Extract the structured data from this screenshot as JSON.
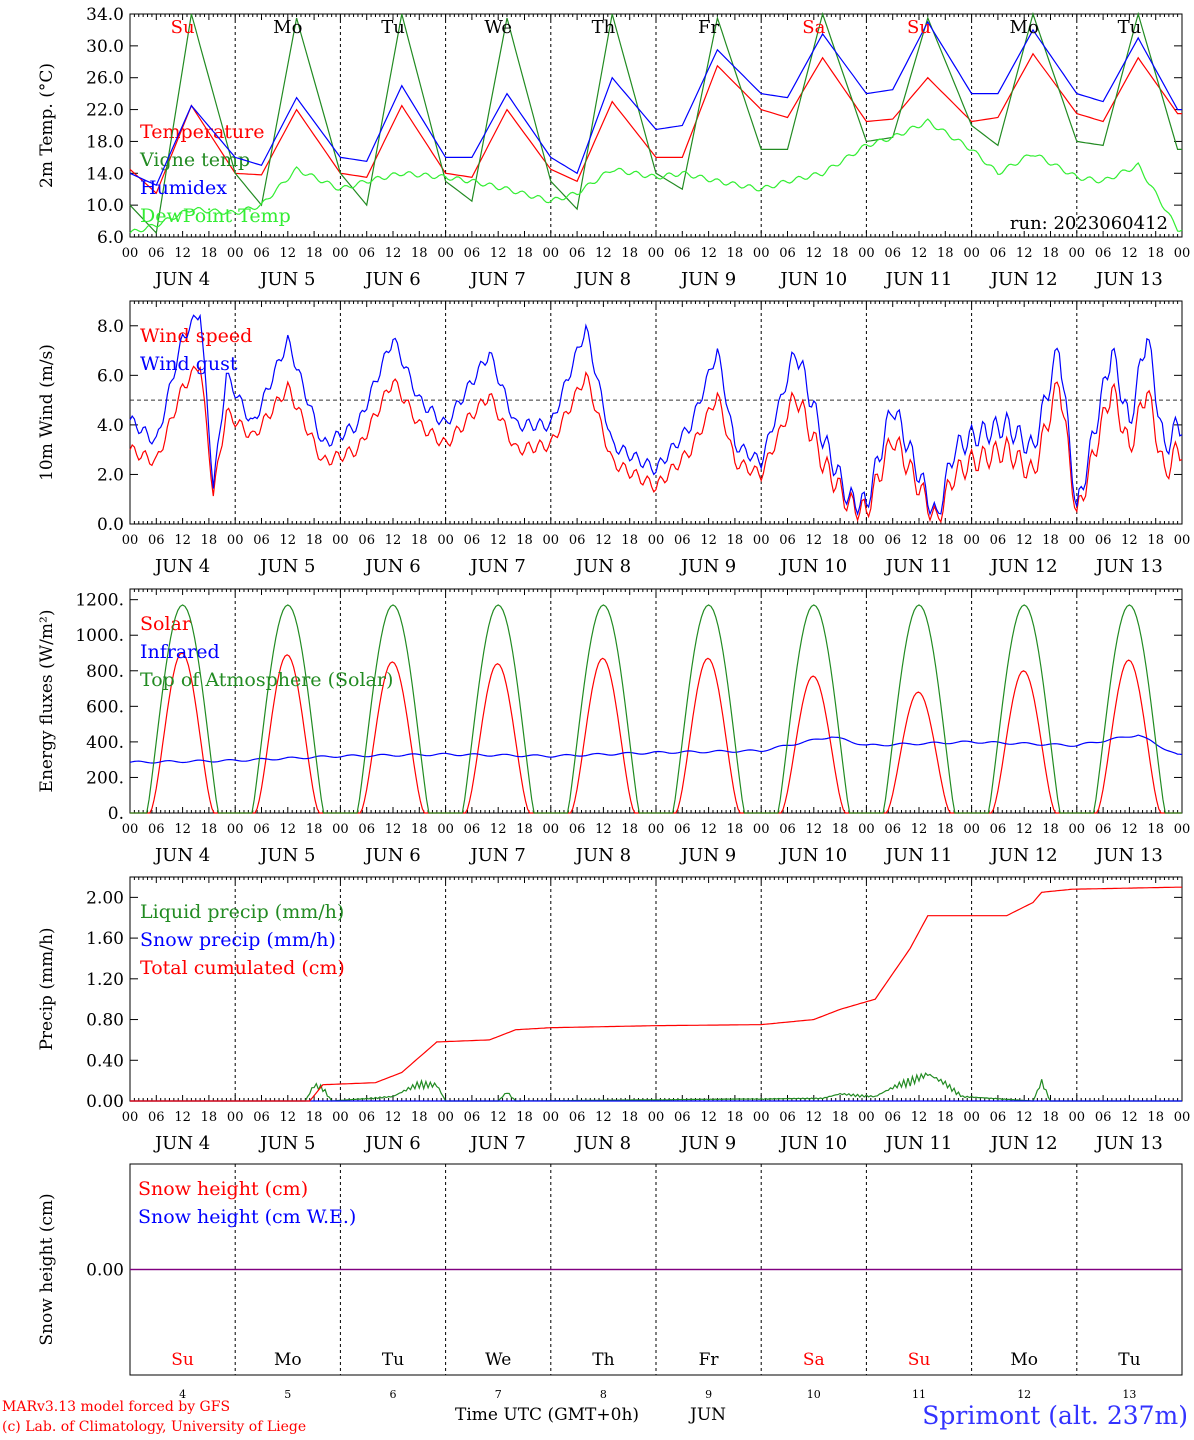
{
  "colors": {
    "red": "#ff0000",
    "dkgreen": "#228b22",
    "blue": "#0000ff",
    "ltgreen": "#33ee33",
    "purple": "#800080",
    "axis": "#000000"
  },
  "x_hours": [
    "00",
    "06",
    "12",
    "18"
  ],
  "day_blocks": [
    {
      "month": "JUN",
      "day": "4",
      "weekday": "Su",
      "weekday_color": "red"
    },
    {
      "month": "JUN",
      "day": "5",
      "weekday": "Mo",
      "weekday_color": "black"
    },
    {
      "month": "JUN",
      "day": "6",
      "weekday": "Tu",
      "weekday_color": "black"
    },
    {
      "month": "JUN",
      "day": "7",
      "weekday": "We",
      "weekday_color": "black"
    },
    {
      "month": "JUN",
      "day": "8",
      "weekday": "Th",
      "weekday_color": "black"
    },
    {
      "month": "JUN",
      "day": "9",
      "weekday": "Fr",
      "weekday_color": "black"
    },
    {
      "month": "JUN",
      "day": "10",
      "weekday": "Sa",
      "weekday_color": "red"
    },
    {
      "month": "JUN",
      "day": "11",
      "weekday": "Su",
      "weekday_color": "red"
    },
    {
      "month": "JUN",
      "day": "12",
      "weekday": "Mo",
      "weekday_color": "black"
    },
    {
      "month": "JUN",
      "day": "13",
      "weekday": "Tu",
      "weekday_color": "black"
    }
  ],
  "footer": {
    "model_line": "MARv3.13 model forced by GFS",
    "credit_line": "(c) Lab. of Climatology, University of Liege",
    "xaxis_title": "Time UTC (GMT+0h)",
    "xaxis_month": "JUN",
    "station": "Sprimont (alt. 237m)"
  },
  "chart_data": [
    {
      "type": "line",
      "ylabel": "2m Temp. (°C)",
      "ylim": [
        6.0,
        34.0
      ],
      "yticks": [
        "6.0",
        "10.0",
        "14.0",
        "18.0",
        "22.0",
        "26.0",
        "30.0",
        "34.0"
      ],
      "run_label": "run: 2023060412",
      "weekday_labels_on_top": true,
      "dashed_hline": null,
      "series": [
        {
          "name": "Temperature",
          "color": "red",
          "x_hours": [
            0,
            6,
            14,
            24,
            30,
            38,
            48,
            54,
            62,
            72,
            78,
            86,
            96,
            102,
            110,
            120,
            126,
            134,
            144,
            150,
            158,
            168,
            174,
            182,
            192,
            198,
            206,
            216,
            222,
            230,
            239
          ],
          "values": [
            14.5,
            11.5,
            22.5,
            14,
            13.8,
            22,
            14,
            13.5,
            22.5,
            14,
            13.5,
            22,
            14.5,
            13,
            23,
            16,
            16,
            27.5,
            22,
            21,
            28.5,
            20.5,
            20.8,
            26,
            20.5,
            21,
            29,
            21.5,
            20.5,
            28.5,
            21.5
          ]
        },
        {
          "name": "Vigne temp",
          "color": "dkgreen",
          "x_hours": [
            0,
            6,
            14,
            24,
            30,
            38,
            48,
            54,
            62,
            72,
            78,
            86,
            96,
            102,
            110,
            120,
            126,
            134,
            144,
            150,
            158,
            168,
            174,
            182,
            192,
            198,
            206,
            216,
            222,
            230,
            239
          ],
          "values": [
            10,
            6.5,
            34,
            14,
            10,
            33.5,
            14,
            10,
            34,
            13,
            10.5,
            33.5,
            13,
            9.5,
            34,
            14,
            12,
            33.5,
            17,
            17,
            34,
            18,
            18.5,
            33.5,
            20,
            17.5,
            34,
            18,
            17.5,
            34,
            17
          ]
        },
        {
          "name": "Humidex",
          "color": "blue",
          "x_hours": [
            0,
            6,
            14,
            24,
            30,
            38,
            48,
            54,
            62,
            72,
            78,
            86,
            96,
            102,
            110,
            120,
            126,
            134,
            144,
            150,
            158,
            168,
            174,
            182,
            192,
            198,
            206,
            216,
            222,
            230,
            239
          ],
          "values": [
            14,
            12.5,
            22.5,
            16,
            15,
            23.5,
            16,
            15.5,
            25,
            16,
            16,
            24,
            16,
            14,
            26,
            19.5,
            20,
            29.5,
            24,
            23.5,
            31.5,
            24,
            24.5,
            33,
            24,
            24,
            32,
            24,
            23,
            31,
            22
          ]
        },
        {
          "name": "DewPoint Temp",
          "color": "ltgreen",
          "x_hours": [
            0,
            6,
            14,
            24,
            30,
            38,
            48,
            54,
            62,
            72,
            78,
            86,
            96,
            102,
            110,
            120,
            126,
            134,
            144,
            150,
            158,
            168,
            174,
            182,
            192,
            198,
            206,
            216,
            222,
            230,
            239
          ],
          "values": [
            6.5,
            7.5,
            9.5,
            9,
            10,
            14.5,
            12,
            13,
            14,
            13.5,
            13,
            12,
            10.5,
            11.5,
            14.5,
            13.5,
            14,
            13,
            12,
            13,
            14,
            17.5,
            18.5,
            20.5,
            17,
            14,
            16.5,
            13.5,
            13,
            15,
            7
          ]
        }
      ]
    },
    {
      "type": "line",
      "ylabel": "10m Wind (m/s)",
      "ylim": [
        0.0,
        9.0
      ],
      "yticks": [
        "0.0",
        "2.0",
        "4.0",
        "6.0",
        "8.0"
      ],
      "dashed_hline": 5.0,
      "series": [
        {
          "name": "Wind speed",
          "color": "red",
          "x_hours": [
            0,
            6,
            12,
            16,
            19,
            22,
            28,
            36,
            44,
            52,
            60,
            66,
            72,
            82,
            88,
            96,
            104,
            110,
            120,
            128,
            134,
            138,
            144,
            152,
            158,
            164,
            168,
            174,
            180,
            184,
            188,
            192,
            200,
            206,
            212,
            216,
            224,
            228,
            232,
            236,
            239
          ],
          "values": [
            3,
            2.5,
            5.5,
            6.5,
            1.2,
            4.5,
            3.5,
            5.5,
            2.5,
            3,
            5.8,
            4,
            3.2,
            5.2,
            3,
            3.2,
            6,
            2.5,
            1.5,
            3,
            5.2,
            2.5,
            2,
            5.2,
            2.5,
            0.8,
            0.5,
            3.5,
            1.5,
            0.1,
            2,
            2.5,
            3,
            2,
            5.8,
            0.3,
            5.5,
            3,
            5.5,
            2,
            3
          ]
        },
        {
          "name": "Wind gust",
          "color": "blue",
          "x_hours": [
            0,
            6,
            12,
            16,
            19,
            22,
            28,
            36,
            44,
            52,
            60,
            66,
            72,
            82,
            88,
            96,
            104,
            110,
            120,
            128,
            134,
            138,
            144,
            152,
            158,
            164,
            168,
            174,
            180,
            184,
            188,
            192,
            200,
            206,
            212,
            216,
            224,
            228,
            232,
            236,
            239
          ],
          "values": [
            4.2,
            3.3,
            7.5,
            8.6,
            1.5,
            6,
            4,
            7.4,
            3.2,
            4,
            7.5,
            5,
            4,
            6.9,
            4,
            4,
            7.9,
            3.2,
            2.2,
            4,
            7,
            3.2,
            2.5,
            7,
            3.5,
            1,
            0.8,
            4.8,
            2,
            0.2,
            3,
            3.5,
            4,
            3,
            7.2,
            0.5,
            7,
            4,
            7.7,
            3,
            4
          ]
        }
      ]
    },
    {
      "type": "line",
      "ylabel": "Energy fluxes (W/m²)",
      "ylim": [
        0,
        1260
      ],
      "yticks": [
        "0.",
        "200.",
        "400.",
        "600.",
        "800.",
        "1000.",
        "1200."
      ],
      "dashed_hline": null,
      "series": [
        {
          "name": "Solar",
          "color": "red",
          "day_peaks": [
            900,
            890,
            850,
            840,
            870,
            870,
            770,
            680,
            800,
            860
          ]
        },
        {
          "name": "Infrared",
          "color": "blue",
          "x_hours": [
            0,
            24,
            48,
            72,
            96,
            120,
            144,
            160,
            168,
            192,
            216,
            230,
            239
          ],
          "values": [
            285,
            295,
            320,
            330,
            320,
            340,
            350,
            430,
            380,
            400,
            380,
            440,
            325
          ]
        },
        {
          "name": "Top of Atmosphere (Solar)",
          "color": "dkgreen",
          "day_peaks": [
            1170,
            1170,
            1170,
            1170,
            1170,
            1170,
            1170,
            1170,
            1170,
            1170
          ]
        }
      ]
    },
    {
      "type": "line",
      "ylabel": "Precip (mm/h)",
      "ylim": [
        0.0,
        2.2
      ],
      "yticks": [
        "0.00",
        "0.40",
        "0.80",
        "1.20",
        "1.60",
        "2.00"
      ],
      "dashed_hline": null,
      "series": [
        {
          "name": "Liquid precip (mm/h)",
          "color": "dkgreen",
          "x_hours": [
            40,
            42,
            44,
            46,
            60,
            66,
            70,
            72,
            84,
            86,
            88,
            158,
            162,
            170,
            176,
            182,
            186,
            190,
            206,
            208,
            210
          ],
          "values": [
            0,
            0.18,
            0.15,
            0,
            0.05,
            0.2,
            0.18,
            0,
            0,
            0.1,
            0,
            0.03,
            0.08,
            0.05,
            0.2,
            0.3,
            0.2,
            0.05,
            0,
            0.22,
            0
          ]
        },
        {
          "name": "Snow precip (mm/h)",
          "color": "blue",
          "x_hours": [
            0,
            239
          ],
          "values": [
            0,
            0
          ]
        },
        {
          "name": "Total cumulated (cm)",
          "color": "red",
          "x_hours": [
            0,
            41,
            44,
            56,
            62,
            70,
            82,
            88,
            96,
            120,
            144,
            156,
            162,
            170,
            178,
            182,
            200,
            206,
            208,
            215,
            239
          ],
          "values": [
            0,
            0,
            0.16,
            0.18,
            0.28,
            0.58,
            0.6,
            0.7,
            0.72,
            0.74,
            0.75,
            0.8,
            0.9,
            1.0,
            1.5,
            1.82,
            1.82,
            1.95,
            2.05,
            2.08,
            2.1
          ]
        }
      ]
    },
    {
      "type": "line",
      "ylabel": "Snow height (cm)",
      "yticks": [
        "0.00"
      ],
      "dashed_hline": null,
      "series": [
        {
          "name": "Snow height (cm)",
          "color": "red",
          "x_hours": [
            0,
            239
          ],
          "values": [
            0,
            0
          ]
        },
        {
          "name": "Snow height (cm W.E.)",
          "color": "blue",
          "x_hours": [
            0,
            239
          ],
          "values": [
            0,
            0
          ]
        }
      ]
    }
  ]
}
